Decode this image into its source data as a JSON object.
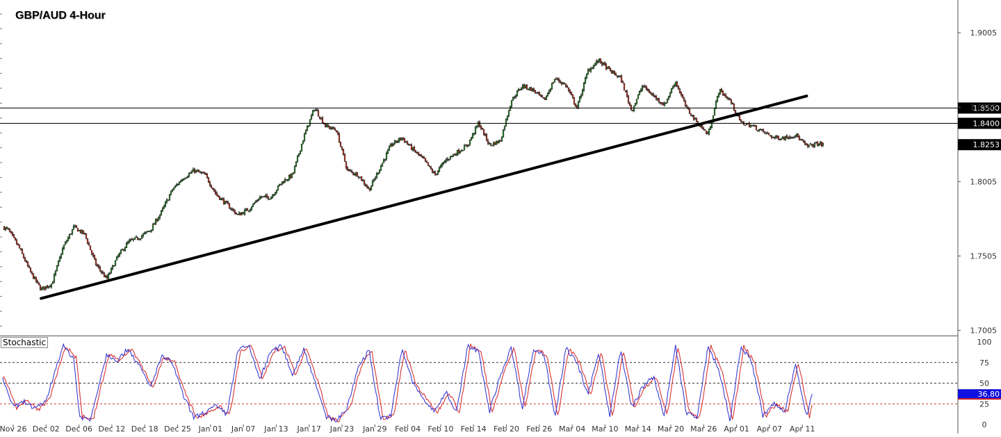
{
  "chart_data": {
    "type": "candlestick",
    "title": "GBP/AUD 4-Hour",
    "x_tick_labels": [
      "Nov 26",
      "Dec 02",
      "Dec 06",
      "Dec 12",
      "Dec 18",
      "Dec 25",
      "Jan 01",
      "Jan 07",
      "Jan 13",
      "Jan 17",
      "Jan 23",
      "Jan 29",
      "Feb 04",
      "Feb 10",
      "Feb 14",
      "Feb 20",
      "Feb 26",
      "Mar 04",
      "Mar 10",
      "Mar 14",
      "Mar 20",
      "Mar 26",
      "Apr 01",
      "Apr 07",
      "Apr 11"
    ],
    "price_axis": {
      "ylim": [
        1.6975,
        1.9225
      ],
      "tick_labels": [
        "1.9005",
        "1.8505",
        "1.8005",
        "1.7505",
        "1.7005"
      ],
      "tick_values": [
        1.9005,
        1.8505,
        1.8005,
        1.7505,
        1.7005
      ]
    },
    "price_path": {
      "x": [
        0,
        1,
        3,
        5,
        7,
        9,
        11,
        13,
        15,
        17,
        19,
        21,
        23,
        25,
        27,
        29,
        31,
        33,
        35,
        37,
        39,
        41,
        43,
        45,
        47,
        49,
        51,
        53,
        55,
        57,
        59,
        61,
        63,
        65,
        67,
        69,
        71,
        73,
        75,
        77,
        79,
        81,
        83,
        85,
        87,
        89,
        91,
        93,
        95,
        97,
        99,
        101,
        103,
        105,
        107,
        109,
        111,
        113,
        115,
        117,
        119,
        121,
        123,
        125,
        127,
        129,
        131,
        133,
        135,
        137,
        139,
        141,
        143,
        145,
        147,
        149,
        150
      ],
      "close": [
        1.77,
        1.768,
        1.756,
        1.74,
        1.728,
        1.732,
        1.756,
        1.77,
        1.765,
        1.745,
        1.735,
        1.75,
        1.76,
        1.763,
        1.768,
        1.78,
        1.795,
        1.803,
        1.808,
        1.805,
        1.792,
        1.785,
        1.778,
        1.782,
        1.79,
        1.79,
        1.8,
        1.805,
        1.83,
        1.85,
        1.838,
        1.835,
        1.808,
        1.805,
        1.795,
        1.81,
        1.825,
        1.83,
        1.822,
        1.815,
        1.805,
        1.815,
        1.82,
        1.825,
        1.84,
        1.825,
        1.828,
        1.855,
        1.865,
        1.862,
        1.855,
        1.87,
        1.865,
        1.85,
        1.875,
        1.882,
        1.875,
        1.87,
        1.848,
        1.865,
        1.858,
        1.852,
        1.868,
        1.85,
        1.84,
        1.832,
        1.862,
        1.855,
        1.84,
        1.838,
        1.834,
        1.83,
        1.83,
        1.832,
        1.824,
        1.826,
        1.8253
      ]
    },
    "horizontal_levels": [
      {
        "value": 1.85,
        "label": "1.8500"
      },
      {
        "value": 1.84,
        "label": "1.8400"
      }
    ],
    "current_price": {
      "value": 1.8253,
      "label": "1.8253"
    },
    "trendline": {
      "from": {
        "x": 7,
        "price": 1.722
      },
      "to": {
        "x": 147,
        "price": 1.858
      }
    },
    "stochastic": {
      "label": "Stochastic",
      "ylim": [
        0,
        100
      ],
      "tick_labels": [
        "100",
        "75",
        "50",
        "25",
        "0"
      ],
      "tick_values": [
        100,
        75,
        50,
        25,
        0
      ],
      "levels": [
        75,
        50,
        25
      ],
      "current": {
        "value": 36.8,
        "label": "36.80"
      },
      "path": {
        "x": [
          0,
          2,
          4,
          6,
          8,
          10,
          11,
          13,
          14,
          16,
          18,
          19,
          21,
          23,
          25,
          27,
          29,
          31,
          33,
          35,
          37,
          39,
          41,
          43,
          45,
          47,
          49,
          51,
          53,
          55,
          57,
          59,
          61,
          63,
          65,
          67,
          69,
          71,
          73,
          75,
          77,
          79,
          81,
          83,
          85,
          87,
          89,
          91,
          93,
          95,
          97,
          99,
          101,
          103,
          105,
          107,
          109,
          111,
          113,
          115,
          117,
          119,
          121,
          123,
          125,
          127,
          129,
          131,
          133,
          135,
          137,
          139,
          141,
          143,
          145,
          147,
          148
        ],
        "k": [
          55,
          20,
          28,
          18,
          30,
          75,
          95,
          80,
          10,
          5,
          60,
          85,
          78,
          92,
          70,
          45,
          82,
          75,
          35,
          8,
          15,
          22,
          12,
          90,
          95,
          55,
          88,
          95,
          60,
          92,
          55,
          10,
          5,
          20,
          70,
          90,
          8,
          10,
          92,
          50,
          30,
          15,
          40,
          15,
          95,
          88,
          15,
          60,
          93,
          20,
          90,
          85,
          10,
          92,
          75,
          35,
          88,
          10,
          90,
          20,
          45,
          58,
          10,
          95,
          15,
          8,
          95,
          65,
          5,
          95,
          75,
          10,
          25,
          15,
          75,
          8,
          36.8
        ]
      }
    }
  }
}
